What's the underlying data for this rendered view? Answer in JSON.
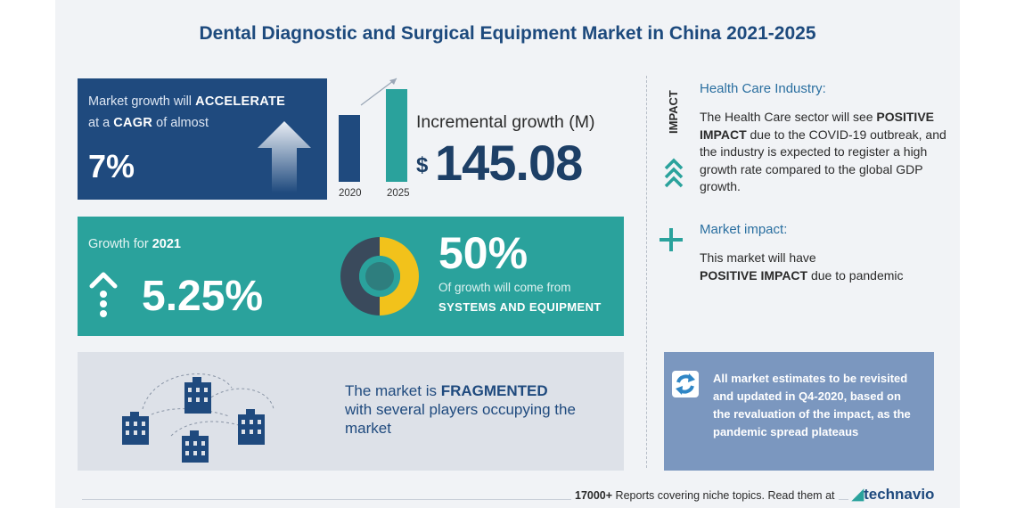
{
  "title": "Dental Diagnostic and Surgical Equipment Market in China 2021-2025",
  "cagr": {
    "line1_prefix": "Market growth will ",
    "line1_strong": "ACCELERATE",
    "line2_prefix": "at a ",
    "line2_strong": "CAGR",
    "line2_suffix": " of almost",
    "value": "7%"
  },
  "bars": {
    "year_start": "2020",
    "year_end": "2025"
  },
  "incremental": {
    "label": "Incremental growth (M)",
    "currency": "$",
    "value": "145.08"
  },
  "growth_2021": {
    "label_prefix": "Growth for ",
    "label_year": "2021",
    "value": "5.25%"
  },
  "segment": {
    "percent": "50%",
    "description": "Of growth will come from",
    "name": "SYSTEMS AND EQUIPMENT"
  },
  "fragmented": {
    "prefix": "The market is ",
    "strong": "FRAGMENTED",
    "suffix": "with several players occupying the market"
  },
  "impact": {
    "vertical_label": "IMPACT",
    "industry_heading": "Health Care Industry:",
    "industry_text_1": "The Health Care sector will see ",
    "industry_strong": "POSITIVE IMPACT",
    "industry_text_2": " due to the COVID-19 outbreak, and the industry is expected to register a high growth rate compared to the global GDP growth.",
    "market_heading": "Market impact:",
    "market_text_1": "This market will have",
    "market_strong": "POSITIVE IMPACT",
    "market_text_2": " due to pandemic"
  },
  "note": {
    "text": "All market estimates to be revisited and updated in Q4-2020, based on the revaluation of the impact, as the pandemic spread plateaus"
  },
  "footer": {
    "strong": "17000+",
    "text": " Reports covering niche topics. Read them at",
    "brand": "technavio"
  },
  "colors": {
    "navy": "#1f4a7e",
    "teal": "#2aa29c",
    "yellow": "#f2c21b",
    "grey_box": "#dde1e8",
    "note_blue": "#7b97bf"
  }
}
